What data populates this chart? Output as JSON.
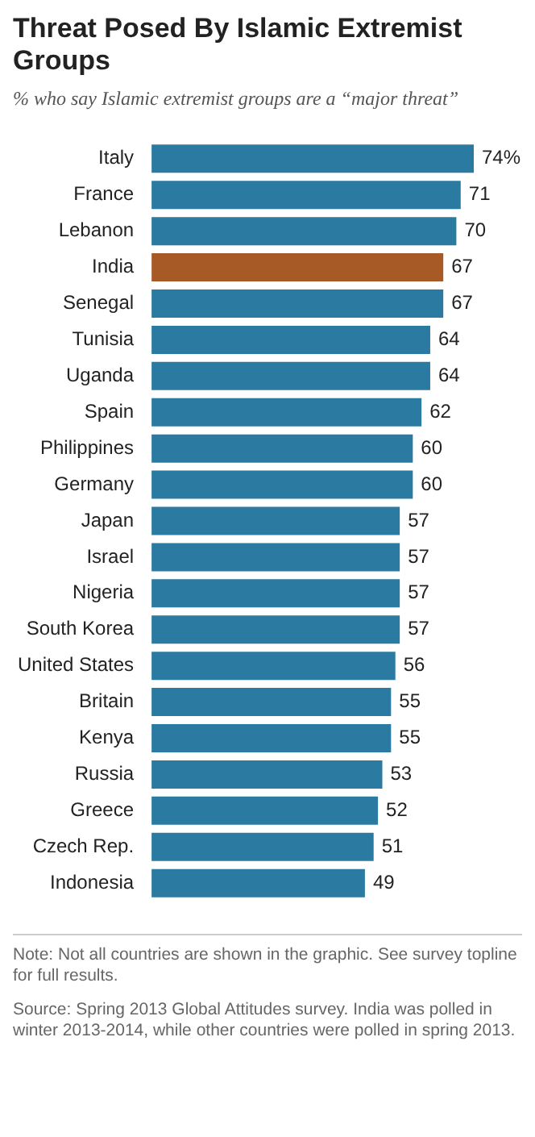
{
  "chart_data": {
    "type": "bar",
    "orientation": "horizontal",
    "title": "Threat Posed By Islamic Extremist Groups",
    "subtitle": "% who say Islamic extremist groups are a “major threat”",
    "categories": [
      "Italy",
      "France",
      "Lebanon",
      "India",
      "Senegal",
      "Tunisia",
      "Uganda",
      "Spain",
      "Philippines",
      "Germany",
      "Japan",
      "Israel",
      "Nigeria",
      "South Korea",
      "United States",
      "Britain",
      "Kenya",
      "Russia",
      "Greece",
      "Czech Rep.",
      "Indonesia"
    ],
    "values": [
      74,
      71,
      70,
      67,
      67,
      64,
      64,
      62,
      60,
      60,
      57,
      57,
      57,
      57,
      56,
      55,
      55,
      53,
      52,
      51,
      49
    ],
    "colors": [
      "#2a7aa1",
      "#2a7aa1",
      "#2a7aa1",
      "#a85a26",
      "#2a7aa1",
      "#2a7aa1",
      "#2a7aa1",
      "#2a7aa1",
      "#2a7aa1",
      "#2a7aa1",
      "#2a7aa1",
      "#2a7aa1",
      "#2a7aa1",
      "#2a7aa1",
      "#2a7aa1",
      "#2a7aa1",
      "#2a7aa1",
      "#2a7aa1",
      "#2a7aa1",
      "#2a7aa1",
      "#2a7aa1"
    ],
    "value_labels": [
      "74%",
      "71",
      "70",
      "67",
      "67",
      "64",
      "64",
      "62",
      "60",
      "60",
      "57",
      "57",
      "57",
      "57",
      "56",
      "55",
      "55",
      "53",
      "52",
      "51",
      "49"
    ],
    "legend": false,
    "annotations": [
      "Note: Not all countries are shown in the graphic. See survey topline for full results.",
      "Source: Spring 2013 Global Attitudes survey.  India was polled in winter 2013-2014, while other countries were polled in spring 2013."
    ]
  }
}
